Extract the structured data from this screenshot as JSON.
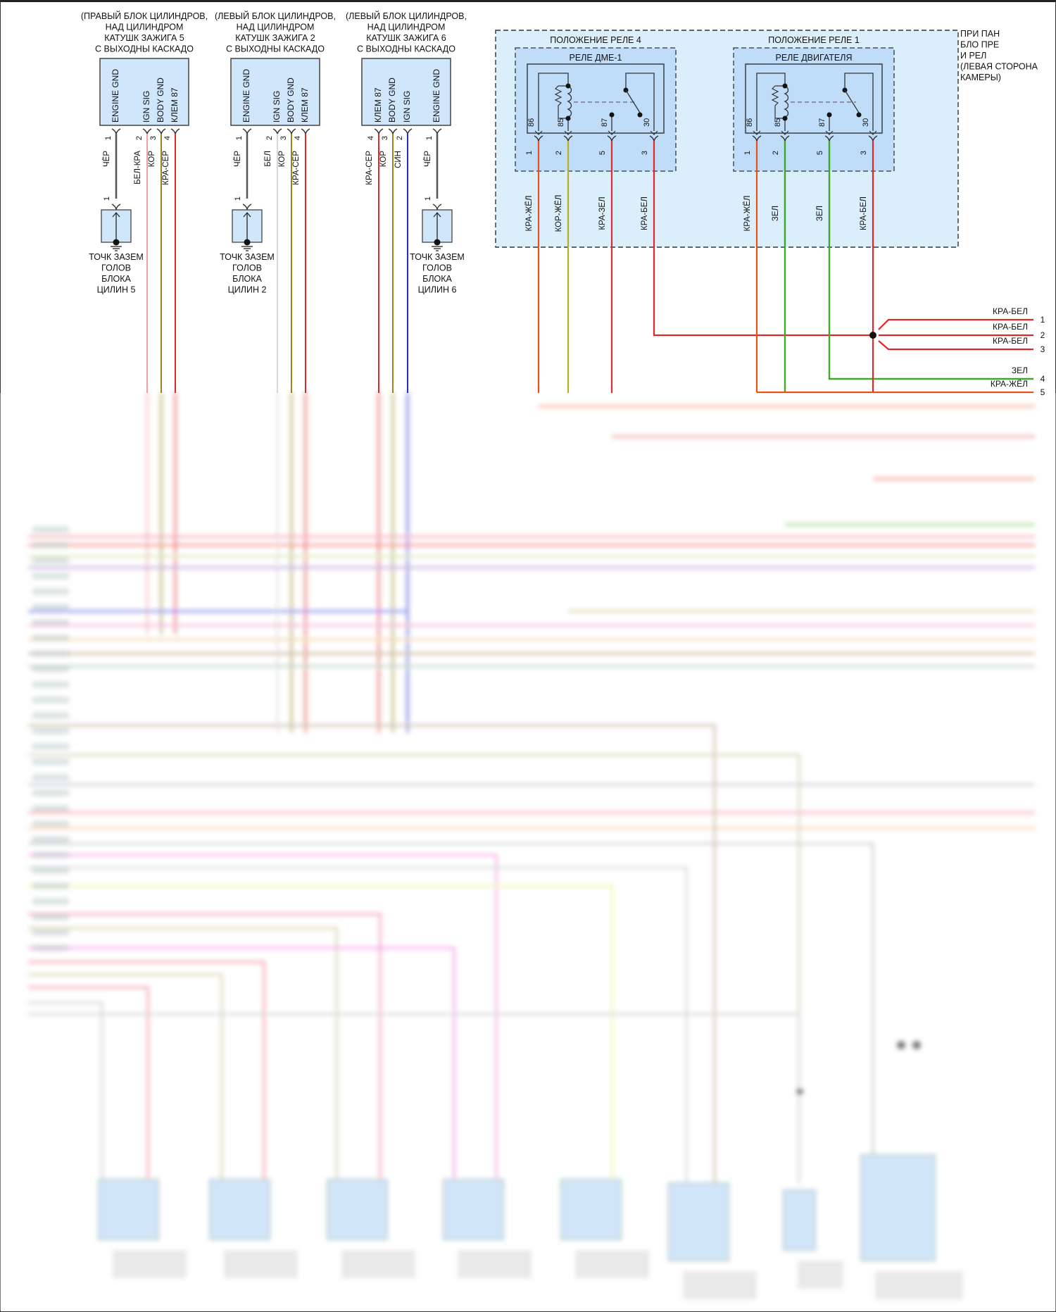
{
  "coils": [
    {
      "title": [
        "(ПРАВЫЙ БЛОК ЦИЛИНДРОВ,",
        "НАД ЦИЛИНДРОМ",
        "КАТУШК ЗАЖИГА 5",
        "С ВЫХОДНЫ КАСКАДО"
      ],
      "pins": [
        {
          "num": "1",
          "name": "ENGINE GND",
          "wire": "ЧЁР",
          "color": "#555555",
          "ground": true
        },
        {
          "num": "2",
          "name": "IGN SIG",
          "wire": "БЕЛ-КРА",
          "color": "#f2a0a0"
        },
        {
          "num": "3",
          "name": "BODY GND",
          "wire": "КОР",
          "color": "#9a8420"
        },
        {
          "num": "4",
          "name": "КЛЕМ 87",
          "wire": "КРА-СЕР",
          "color": "#e02828"
        }
      ],
      "ground_label": [
        "ТОЧК ЗАЗЕМ",
        "ГОЛОВ",
        "БЛОКА",
        "ЦИЛИН 5"
      ],
      "ground_pin": "1"
    },
    {
      "title": [
        "(ЛЕВЫЙ БЛОК ЦИЛИНДРОВ,",
        "НАД ЦИЛИНДРОМ",
        "КАТУШК ЗАЖИГА 2",
        "С ВЫХОДНЫ КАСКАДО"
      ],
      "pins": [
        {
          "num": "1",
          "name": "ENGINE GND",
          "wire": "ЧЁР",
          "color": "#555555",
          "ground": true
        },
        {
          "num": "2",
          "name": "IGN SIG",
          "wire": "БЕЛ",
          "color": "#d8d8d8"
        },
        {
          "num": "3",
          "name": "BODY GND",
          "wire": "КОР",
          "color": "#9a8420"
        },
        {
          "num": "4",
          "name": "КЛЕМ 87",
          "wire": "КРА-СЕР",
          "color": "#e02828"
        }
      ],
      "ground_label": [
        "ТОЧК ЗАЗЕМ",
        "ГОЛОВ",
        "БЛОКА",
        "ЦИЛИН 2"
      ],
      "ground_pin": "1"
    },
    {
      "title": [
        "(ЛЕВЫЙ БЛОК ЦИЛИНДРОВ,",
        "НАД ЦИЛИНДРОМ",
        "КАТУШК ЗАЖИГА 6",
        "С ВЫХОДНЫ КАСКАДО"
      ],
      "pins": [
        {
          "num": "4",
          "name": "КЛЕМ 87",
          "wire": "КРА-СЕР",
          "color": "#e02828"
        },
        {
          "num": "3",
          "name": "BODY GND",
          "wire": "КОР",
          "color": "#9a8420"
        },
        {
          "num": "2",
          "name": "IGN SIG",
          "wire": "СИН",
          "color": "#2030c8"
        },
        {
          "num": "1",
          "name": "ENGINE GND",
          "wire": "ЧЁР",
          "color": "#555555",
          "ground": true
        }
      ],
      "ground_label": [
        "ТОЧК ЗАЗЕМ",
        "ГОЛОВ",
        "БЛОКА",
        "ЦИЛИН 6"
      ],
      "ground_pin": "1"
    }
  ],
  "relay_panel": {
    "label": [
      "ПРИ ПАН",
      "БЛО ПРЕ",
      "И РЕЛ",
      "(ЛЕВАЯ СТОРОНА",
      "КАМЕРЫ)"
    ],
    "relays": [
      {
        "position": "ПОЛОЖЕНИЕ РЕЛЕ 4",
        "name": "РЕЛЕ ДМЕ-1",
        "terminals": [
          "86",
          "85",
          "87",
          "30"
        ],
        "pins": [
          {
            "num": "1",
            "wire": "КРА-ЖЁЛ",
            "color": "#e8501e"
          },
          {
            "num": "2",
            "wire": "КОР-ЖЁЛ",
            "color": "#b8ac20"
          },
          {
            "num": "5",
            "wire": "КРА-ЗЕЛ",
            "color": "#d83030"
          },
          {
            "num": "3",
            "wire": "КРА-БЕЛ",
            "color": "#e02828"
          }
        ]
      },
      {
        "position": "ПОЛОЖЕНИЕ РЕЛЕ 1",
        "name": "РЕЛЕ ДВИГАТЕЛЯ",
        "terminals": [
          "86",
          "85",
          "87",
          "30"
        ],
        "pins": [
          {
            "num": "1",
            "wire": "КРА-ЖЁЛ",
            "color": "#e8501e"
          },
          {
            "num": "2",
            "wire": "ЗЕЛ",
            "color": "#40a828"
          },
          {
            "num": "5",
            "wire": "ЗЕЛ",
            "color": "#40a828"
          },
          {
            "num": "3",
            "wire": "КРА-БЕЛ",
            "color": "#e02828"
          }
        ]
      }
    ]
  },
  "right_connector": [
    {
      "num": "1",
      "wire": "КРА-БЕЛ",
      "color": "#e02828"
    },
    {
      "num": "2",
      "wire": "КРА-БЕЛ",
      "color": "#e02828"
    },
    {
      "num": "3",
      "wire": "КРА-БЕЛ",
      "color": "#e02828"
    },
    {
      "num": "4",
      "wire": "ЗЕЛ",
      "color": "#40a828"
    },
    {
      "num": "5",
      "wire": "КРА-ЖЁЛ",
      "color": "#e8501e"
    }
  ],
  "colors": {
    "component_fill": "#cfe6fb",
    "panel_fill": "#dbeefb",
    "relay_fill": "#bfdcf8"
  }
}
